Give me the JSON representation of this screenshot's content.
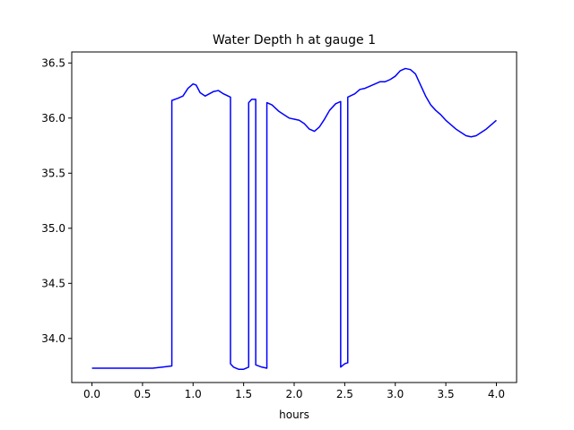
{
  "chart_data": {
    "type": "line",
    "title": "Water Depth h at gauge 1",
    "xlabel": "hours",
    "ylabel": "",
    "xlim": [
      -0.2,
      4.2
    ],
    "ylim": [
      33.6,
      36.6
    ],
    "xticks": [
      0.0,
      0.5,
      1.0,
      1.5,
      2.0,
      2.5,
      3.0,
      3.5,
      4.0
    ],
    "xtick_labels": [
      "0.0",
      "0.5",
      "1.0",
      "1.5",
      "2.0",
      "2.5",
      "3.0",
      "3.5",
      "4.0"
    ],
    "yticks": [
      34.0,
      34.5,
      35.0,
      35.5,
      36.0,
      36.5
    ],
    "ytick_labels": [
      "34.0",
      "34.5",
      "35.0",
      "35.5",
      "36.0",
      "36.5"
    ],
    "grid": false,
    "legend": "none",
    "series": [
      {
        "color": "#0000ff",
        "x": [
          0.0,
          0.3,
          0.6,
          0.7,
          0.79,
          0.79,
          0.85,
          0.9,
          0.95,
          1.0,
          1.03,
          1.07,
          1.12,
          1.2,
          1.25,
          1.3,
          1.37,
          1.37,
          1.4,
          1.45,
          1.5,
          1.55,
          1.55,
          1.58,
          1.62,
          1.62,
          1.68,
          1.73,
          1.73,
          1.78,
          1.85,
          1.95,
          2.0,
          2.05,
          2.1,
          2.15,
          2.2,
          2.25,
          2.3,
          2.35,
          2.41,
          2.46,
          2.46,
          2.5,
          2.53,
          2.53,
          2.6,
          2.65,
          2.7,
          2.8,
          2.85,
          2.9,
          2.95,
          3.0,
          3.05,
          3.1,
          3.15,
          3.2,
          3.25,
          3.3,
          3.35,
          3.4,
          3.45,
          3.5,
          3.6,
          3.7,
          3.75,
          3.8,
          3.9,
          4.0
        ],
        "y": [
          33.73,
          33.73,
          33.73,
          33.74,
          33.75,
          36.16,
          36.18,
          36.2,
          36.27,
          36.31,
          36.3,
          36.23,
          36.2,
          36.24,
          36.25,
          36.22,
          36.19,
          33.77,
          33.74,
          33.72,
          33.72,
          33.74,
          36.14,
          36.17,
          36.17,
          33.76,
          33.74,
          33.73,
          36.14,
          36.12,
          36.06,
          36.0,
          35.99,
          35.98,
          35.95,
          35.9,
          35.88,
          35.92,
          35.99,
          36.07,
          36.13,
          36.15,
          33.74,
          33.77,
          33.78,
          36.19,
          36.22,
          36.26,
          36.27,
          36.31,
          36.33,
          36.33,
          36.35,
          36.38,
          36.43,
          36.45,
          36.44,
          36.4,
          36.3,
          36.2,
          36.12,
          36.07,
          36.03,
          35.98,
          35.9,
          35.84,
          35.83,
          35.84,
          35.9,
          35.98
        ]
      }
    ]
  }
}
